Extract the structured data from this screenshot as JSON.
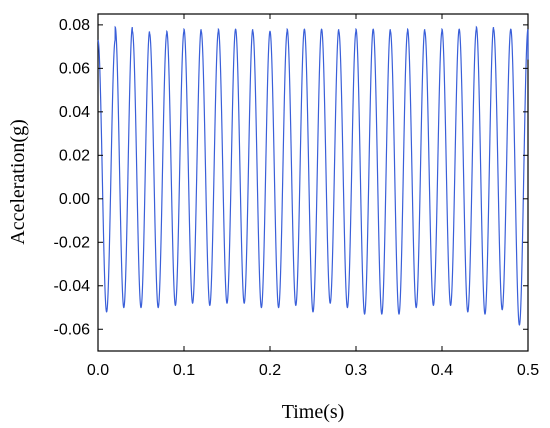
{
  "chart_data": {
    "type": "line",
    "title": "",
    "xlabel": "Time(s)",
    "ylabel": "Acceleration(g)",
    "xlim": [
      0.0,
      0.5
    ],
    "ylim": [
      -0.07,
      0.085
    ],
    "x_ticks": [
      0.0,
      0.1,
      0.2,
      0.3,
      0.4,
      0.5
    ],
    "x_tick_labels": [
      "0.0",
      "0.1",
      "0.2",
      "0.3",
      "0.4",
      "0.5"
    ],
    "y_ticks": [
      -0.06,
      -0.04,
      -0.02,
      0.0,
      0.02,
      0.04,
      0.06,
      0.08
    ],
    "y_tick_labels": [
      "-0.06",
      "-0.04",
      "-0.02",
      "0.00",
      "0.02",
      "0.04",
      "0.06",
      "0.08"
    ],
    "grid": false,
    "legend": "none",
    "series": [
      {
        "color": "#3a5fd9",
        "description_type": "sinusoidal acceleration signal",
        "frequency_hz": 50,
        "peak_max": [
          0.073,
          0.079,
          0.077,
          0.076,
          0.077,
          0.078,
          0.077,
          0.078,
          0.078,
          0.077,
          0.077,
          0.078,
          0.078,
          0.078,
          0.077,
          0.078,
          0.078,
          0.077,
          0.078,
          0.077,
          0.078,
          0.078,
          0.079,
          0.078,
          0.078,
          0.064
        ],
        "peak_min": [
          -0.052,
          -0.05,
          -0.05,
          -0.05,
          -0.049,
          -0.048,
          -0.049,
          -0.048,
          -0.048,
          -0.05,
          -0.05,
          -0.049,
          -0.052,
          -0.048,
          -0.05,
          -0.053,
          -0.053,
          -0.053,
          -0.05,
          -0.049,
          -0.049,
          -0.052,
          -0.053,
          -0.051,
          -0.058
        ]
      }
    ]
  }
}
